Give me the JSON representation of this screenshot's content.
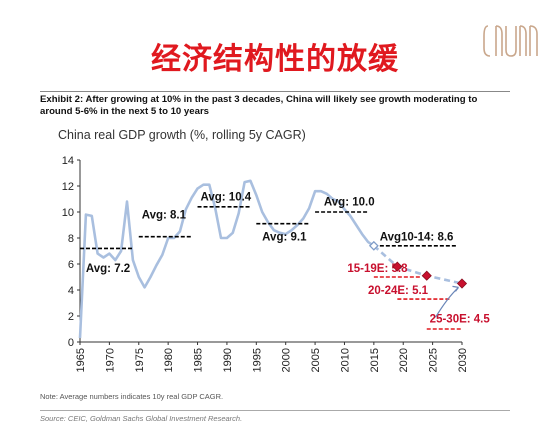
{
  "slide": {
    "title": "经济结构性的放缓",
    "exhibit": "Exhibit 2: After growing at 10% in the past 3 decades, China will likely see growth moderating to around 5-6% in the next 5 to 10 years",
    "note": "Note: Average numbers indicates 10y real GDP CAGR.",
    "source": "Source: CEIC, Goldman Sachs Global Investment Research."
  },
  "colors": {
    "title": "#e0191f",
    "line": "#a9bfdf",
    "forecast": "#c8102e",
    "avg_line": "#000000",
    "avg_line_forecast": "#e0191f"
  },
  "chart_data": {
    "type": "line",
    "title": "China real GDP growth (%, rolling 5y CAGR)",
    "xlabel": "",
    "ylabel": "",
    "xlim": [
      1965,
      2030
    ],
    "ylim": [
      0,
      14
    ],
    "xticks": [
      1965,
      1970,
      1975,
      1980,
      1985,
      1990,
      1995,
      2000,
      2005,
      2010,
      2015,
      2020,
      2025,
      2030
    ],
    "yticks": [
      0,
      2,
      4,
      6,
      8,
      10,
      12,
      14
    ],
    "grid": false,
    "series": [
      {
        "style": "solid",
        "x": [
          1965,
          1966,
          1967,
          1968,
          1969,
          1970,
          1971,
          1972,
          1973,
          1974,
          1975,
          1976,
          1977,
          1978,
          1979,
          1980,
          1981,
          1982,
          1983,
          1984,
          1985,
          1986,
          1987,
          1988,
          1989,
          1990,
          1991,
          1992,
          1993,
          1994,
          1995,
          1996,
          1997,
          1998,
          1999,
          2000,
          2001,
          2002,
          2003,
          2004,
          2005,
          2006,
          2007,
          2008,
          2009,
          2010,
          2011,
          2012,
          2013,
          2014,
          2015
        ],
        "y": [
          0.3,
          9.8,
          9.7,
          6.8,
          6.5,
          6.8,
          6.3,
          7.0,
          10.8,
          6.3,
          5.0,
          4.2,
          5.0,
          5.9,
          6.7,
          8.0,
          8.0,
          8.5,
          10.2,
          11.1,
          11.8,
          12.1,
          12.1,
          10.3,
          8.0,
          8.0,
          8.4,
          9.9,
          12.3,
          12.4,
          11.3,
          10.0,
          9.2,
          8.6,
          8.4,
          8.3,
          8.6,
          9.0,
          9.5,
          10.3,
          11.6,
          11.6,
          11.4,
          11.0,
          10.8,
          10.2,
          9.7,
          9.0,
          8.3,
          7.7,
          7.4
        ]
      },
      {
        "style": "dashed",
        "x": [
          2015,
          2019,
          2024,
          2030
        ],
        "y": [
          7.4,
          5.8,
          5.1,
          4.5
        ]
      }
    ],
    "markers": [
      {
        "x": 2015,
        "y": 7.4,
        "style": "open"
      },
      {
        "x": 2019,
        "y": 5.8,
        "style": "diamond"
      },
      {
        "x": 2024,
        "y": 5.1,
        "style": "diamond"
      },
      {
        "x": 2030,
        "y": 4.5,
        "style": "diamond"
      }
    ],
    "averages": [
      {
        "label": "Avg: 7.2",
        "x0": 1965,
        "x1": 1974,
        "y": 7.2,
        "forecast": false,
        "label_x": 1966,
        "label_y": 5.4
      },
      {
        "label": "Avg: 8.1",
        "x0": 1975,
        "x1": 1984,
        "y": 8.1,
        "forecast": false,
        "label_x": 1975.5,
        "label_y": 9.5
      },
      {
        "label": "Avg: 10.4",
        "x0": 1985,
        "x1": 1994,
        "y": 10.4,
        "forecast": false,
        "label_x": 1985.5,
        "label_y": 10.9
      },
      {
        "label": "Avg: 9.1",
        "x0": 1995,
        "x1": 2004,
        "y": 9.1,
        "forecast": false,
        "label_x": 1996,
        "label_y": 7.8
      },
      {
        "label": "Avg: 10.0",
        "x0": 2005,
        "x1": 2014,
        "y": 10.0,
        "forecast": false,
        "label_x": 2006.5,
        "label_y": 10.5
      },
      {
        "label": "Avg10-14: 8.6",
        "x0": 2015,
        "x1": 2029,
        "y": 7.4,
        "forecast": false,
        "label_x": 2016,
        "label_y": 7.8
      },
      {
        "label": "15-19E: 5.8",
        "x0": 2015,
        "x1": 2023,
        "y": 5.0,
        "forecast": true,
        "label_x": 2010.5,
        "label_y": 5.4
      },
      {
        "label": "20-24E: 5.1",
        "x0": 2019,
        "x1": 2028,
        "y": 3.3,
        "forecast": true,
        "label_x": 2014,
        "label_y": 3.7
      },
      {
        "label": "25-30E: 4.5",
        "x0": 2024,
        "x1": 2030,
        "y": 1.0,
        "forecast": true,
        "label_x": 2024.5,
        "label_y": 1.5
      }
    ]
  }
}
